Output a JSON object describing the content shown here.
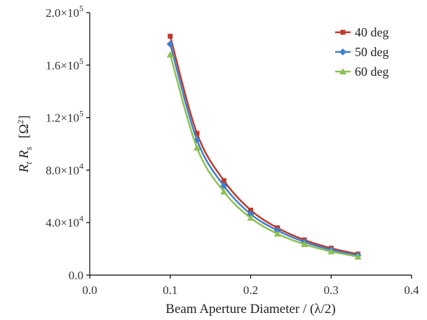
{
  "chart_data": {
    "type": "line",
    "xlabel": "Beam Aperture Diameter / (λ/2)",
    "ylabel_main": "R",
    "ylabel_sub1": "t",
    "ylabel_sub2": "s",
    "ylabel_unit": "[Ω",
    "ylabel_unit_sup": "2",
    "ylabel_unit_close": "]",
    "xlim": [
      0.0,
      0.4
    ],
    "ylim": [
      0,
      200000
    ],
    "x_ticks": [
      0.0,
      0.1,
      0.2,
      0.3,
      0.4
    ],
    "x_tick_labels": [
      "0.0",
      "0.1",
      "0.2",
      "0.3",
      "0.4"
    ],
    "y_ticks": [
      0,
      40000,
      80000,
      120000,
      160000,
      200000
    ],
    "y_tick_labels": [
      {
        "mant": "0.0",
        "exp": ""
      },
      {
        "mant": "4.0×10",
        "exp": "4"
      },
      {
        "mant": "8.0×10",
        "exp": "4"
      },
      {
        "mant": "1.2×10",
        "exp": "5"
      },
      {
        "mant": "1.6×10",
        "exp": "5"
      },
      {
        "mant": "2.0×10",
        "exp": "5"
      }
    ],
    "grid": false,
    "legend_position": "top-right",
    "x": [
      0.1,
      0.1333,
      0.1667,
      0.2,
      0.2333,
      0.2667,
      0.3,
      0.3333
    ],
    "series": [
      {
        "name": "40 deg",
        "color": "#c0392b",
        "marker": "square",
        "values": [
          182000,
          108000,
          72000,
          49500,
          36000,
          26800,
          20500,
          16000
        ]
      },
      {
        "name": "50 deg",
        "color": "#3f7fce",
        "marker": "diamond",
        "values": [
          176000,
          103000,
          68000,
          46500,
          34000,
          25300,
          19300,
          15000
        ]
      },
      {
        "name": "60 deg",
        "color": "#8cc152",
        "marker": "triangle",
        "values": [
          168000,
          97000,
          63500,
          43500,
          31500,
          23500,
          18000,
          14000
        ]
      }
    ]
  }
}
